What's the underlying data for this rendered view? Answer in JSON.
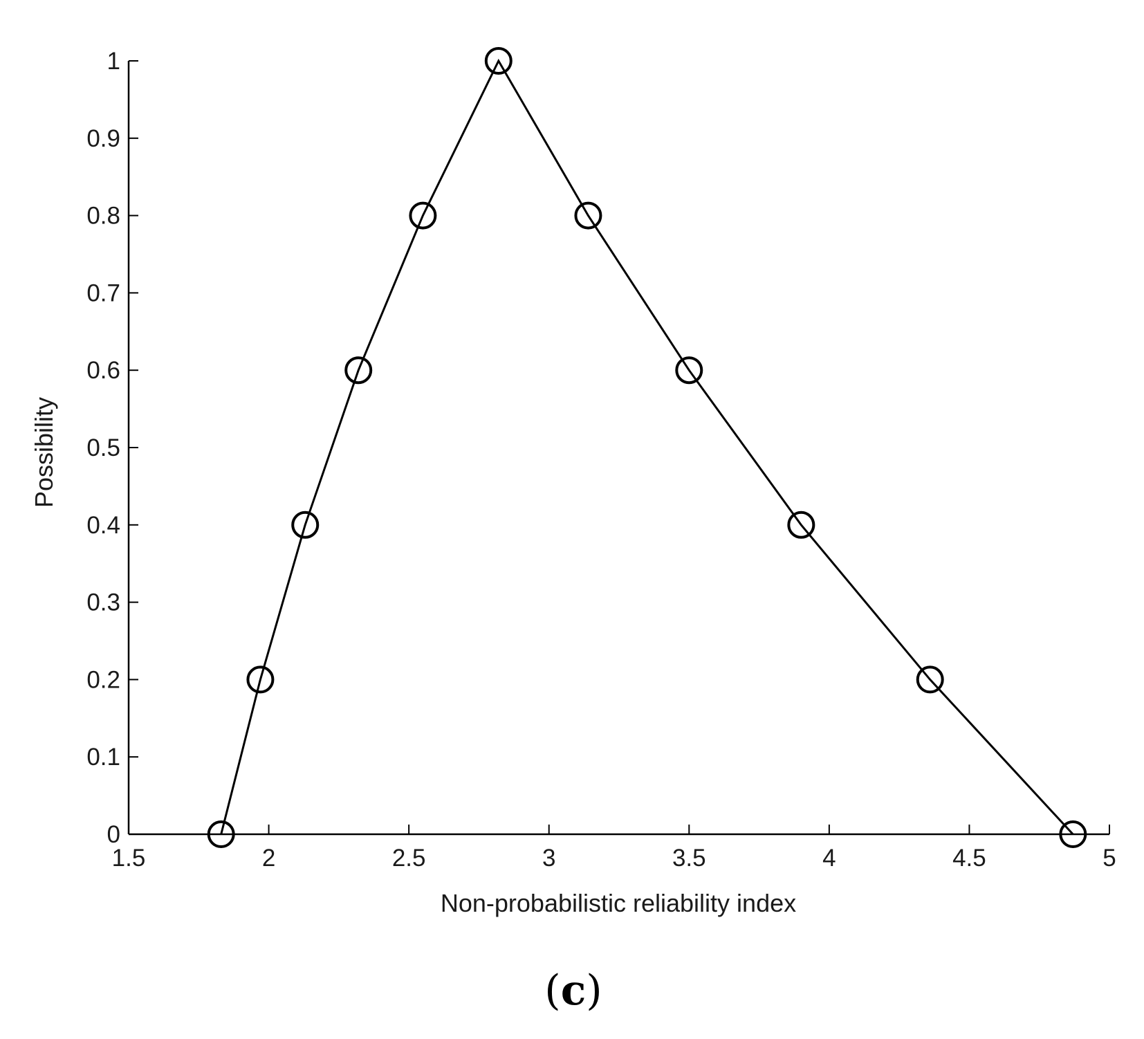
{
  "chart_data": {
    "type": "line",
    "xlabel": "Non-probabilistic reliability index",
    "ylabel": "Possibility",
    "xlim": [
      1.5,
      5
    ],
    "ylim": [
      0,
      1
    ],
    "xticks": [
      "1.5",
      "2",
      "2.5",
      "3",
      "3.5",
      "4",
      "4.5",
      "5"
    ],
    "yticks": [
      "0",
      "0.1",
      "0.2",
      "0.3",
      "0.4",
      "0.5",
      "0.6",
      "0.7",
      "0.8",
      "0.9",
      "1"
    ],
    "grid": false,
    "marker": "open-circle",
    "line_color": "#000000",
    "x": [
      1.83,
      1.97,
      2.13,
      2.32,
      2.55,
      2.82,
      3.14,
      3.5,
      3.9,
      4.36,
      4.87
    ],
    "y": [
      0,
      0.2,
      0.4,
      0.6,
      0.8,
      1.0,
      0.8,
      0.6,
      0.4,
      0.2,
      0
    ],
    "panel_label": {
      "open": "(",
      "letter": "c",
      "close": ")"
    }
  }
}
